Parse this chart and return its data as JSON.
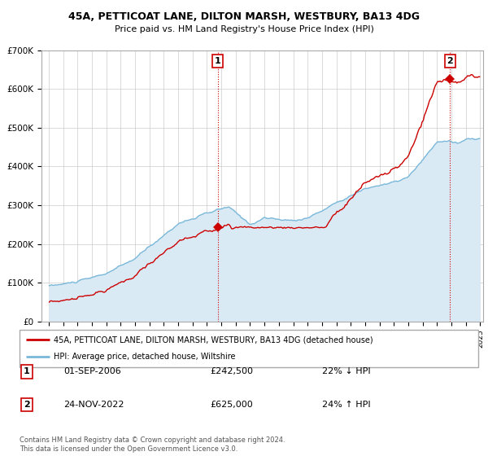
{
  "title": "45A, PETTICOAT LANE, DILTON MARSH, WESTBURY, BA13 4DG",
  "subtitle": "Price paid vs. HM Land Registry's House Price Index (HPI)",
  "legend_line1": "45A, PETTICOAT LANE, DILTON MARSH, WESTBURY, BA13 4DG (detached house)",
  "legend_line2": "HPI: Average price, detached house, Wiltshire",
  "footnote": "Contains HM Land Registry data © Crown copyright and database right 2024.\nThis data is licensed under the Open Government Licence v3.0.",
  "sale1_label": "1",
  "sale1_date": "01-SEP-2006",
  "sale1_price": "£242,500",
  "sale1_hpi": "22% ↓ HPI",
  "sale2_label": "2",
  "sale2_date": "24-NOV-2022",
  "sale2_price": "£625,000",
  "sale2_hpi": "24% ↑ HPI",
  "hpi_color": "#7ab8d9",
  "hpi_fill_color": "#daeaf5",
  "property_color": "#cc0000",
  "sale_marker_color": "#cc0000",
  "dashed_line_color": "#cc0000",
  "background_color": "#ffffff",
  "grid_color": "#cccccc",
  "ylim": [
    0,
    700000
  ],
  "yticks": [
    0,
    100000,
    200000,
    300000,
    400000,
    500000,
    600000,
    700000
  ],
  "ytick_labels": [
    "£0",
    "£100K",
    "£200K",
    "£300K",
    "£400K",
    "£500K",
    "£600K",
    "£700K"
  ],
  "sale1_x": 2006.75,
  "sale1_y": 242500,
  "sale2_x": 2022.9,
  "sale2_y": 625000,
  "xmin": 1994.5,
  "xmax": 2025.2
}
